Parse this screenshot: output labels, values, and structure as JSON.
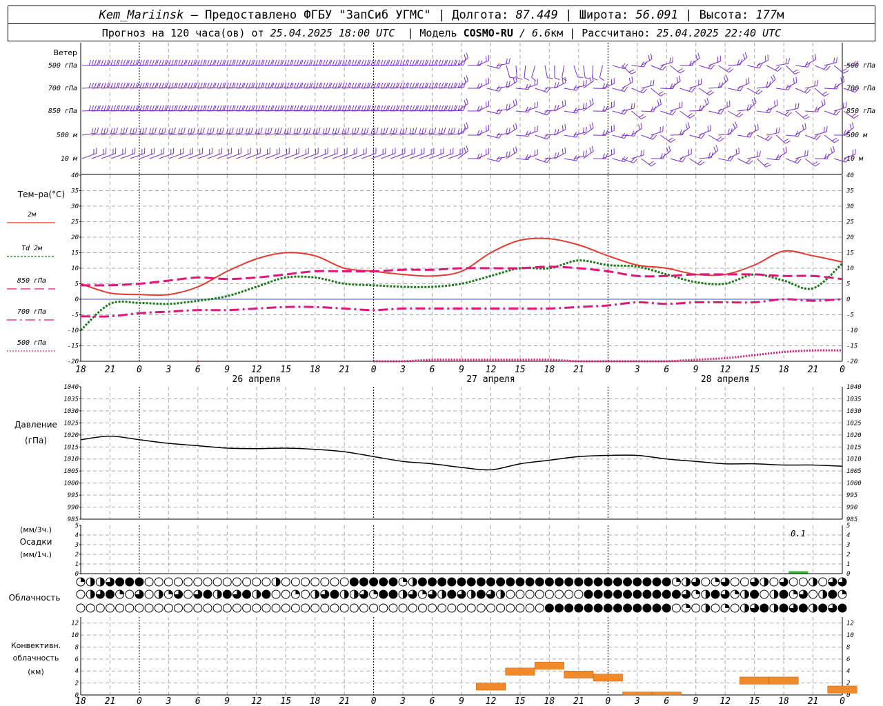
{
  "header": {
    "station": "Kem_Mariinsk",
    "sep": "–",
    "provider": "Предоставлено ФГБУ \"ЗапСиб УГМС\"",
    "lon_label": "Долгота:",
    "lon": "87.449",
    "lat_label": "Широта:",
    "lat": "56.091",
    "alt_label": "Высота:",
    "alt": "177",
    "alt_unit": "м",
    "forecast_text": "Прогноз на 120 часа(ов) от",
    "forecast_time": "25.04.2025 18:00 UTC",
    "model_label": "Модель",
    "model": "COSMO-RU",
    "resolution": "/ 6.6",
    "res_unit": "км",
    "computed_label": "Рассчитано:",
    "computed_time": "25.04.2025 22:40 UTC"
  },
  "time_axis": {
    "hour_labels": [
      "18",
      "21",
      "0",
      "3",
      "6",
      "9",
      "12",
      "15",
      "18",
      "21",
      "0",
      "3",
      "6",
      "9",
      "12",
      "15",
      "18",
      "21",
      "0",
      "3",
      "6",
      "9",
      "12",
      "15",
      "18",
      "21",
      "0"
    ],
    "day_labels": [
      "26 апреля",
      "27 апреля",
      "28 апреля"
    ]
  },
  "wind": {
    "title": "Ветер",
    "levels": [
      "500 гПа",
      "700 гПа",
      "850 гПа",
      "500 м",
      "10 м"
    ]
  },
  "temperature": {
    "title": "Тем–ра(°С)",
    "legend": [
      {
        "label": "2м",
        "color": "#e8392f",
        "style": "solid"
      },
      {
        "label": "Td  2м",
        "color": "#1a7a1a",
        "style": "dotted"
      },
      {
        "label": "850 гПа",
        "color": "#e0177a",
        "style": "dashed"
      },
      {
        "label": "700 гПа",
        "color": "#e0177a",
        "style": "dashdot"
      },
      {
        "label": "500 гПа",
        "color": "#e0177a",
        "style": "densedot"
      }
    ],
    "ticks": [
      "40",
      "35",
      "30",
      "25",
      "20",
      "15",
      "10",
      "5",
      "0",
      "-5",
      "-10",
      "-15",
      "-20"
    ]
  },
  "pressure": {
    "title": "Давление",
    "unit": "(гПа)",
    "ticks": [
      "1040",
      "1035",
      "1030",
      "1025",
      "1020",
      "1015",
      "1010",
      "1005",
      "1000",
      "995",
      "990",
      "985"
    ]
  },
  "precip": {
    "unit3": "(мм/3ч.)",
    "title": "Осадки",
    "unit1": "(мм/1ч.)",
    "ticks": [
      "5",
      "4",
      "3",
      "2",
      "1",
      "0"
    ],
    "annotation": "0.1"
  },
  "cloud": {
    "title": "Облачность"
  },
  "convective": {
    "title1": "Конвективн.",
    "title2": "облачность",
    "unit": "(км)",
    "ticks": [
      "12",
      "10",
      "8",
      "6",
      "4",
      "2",
      "0"
    ]
  },
  "chart_data": {
    "type": "meteogram",
    "x_hours_from_start": [
      0,
      3,
      6,
      9,
      12,
      15,
      18,
      21,
      24,
      27,
      30,
      33,
      36,
      39,
      42,
      45,
      48,
      51,
      54,
      57,
      60,
      63,
      66,
      69,
      72,
      75,
      78
    ],
    "series": [
      {
        "name": "2м",
        "values": [
          5,
          2,
          1.5,
          1.5,
          4,
          9,
          13,
          15,
          14,
          10,
          9,
          8,
          7.5,
          9,
          15,
          19,
          19.5,
          17.5,
          14,
          11,
          10,
          8,
          8,
          11,
          15.5,
          14,
          12
        ]
      },
      {
        "name": "Td  2м",
        "values": [
          -10,
          -1.5,
          -1.2,
          -1.5,
          -0.5,
          1,
          4,
          7,
          7,
          5,
          4.5,
          4,
          4,
          5,
          7.5,
          10,
          10,
          12.5,
          11,
          10.5,
          8,
          5.5,
          5,
          8,
          6,
          3.5,
          11.5
        ]
      },
      {
        "name": "850 гПа",
        "values": [
          4.5,
          4.5,
          5,
          6,
          7,
          6.5,
          7,
          8,
          9,
          9,
          9,
          9.5,
          9.5,
          10,
          10,
          10,
          10.5,
          10,
          9,
          7.5,
          7.5,
          8,
          8,
          8,
          7.5,
          7.5,
          6.5
        ]
      },
      {
        "name": "700 гПа",
        "values": [
          -5.5,
          -5.5,
          -4.5,
          -4,
          -3.5,
          -3.5,
          -3,
          -2.5,
          -2.5,
          -3,
          -3.5,
          -3,
          -3,
          -3,
          -3,
          -3,
          -3,
          -2.5,
          -2,
          -1,
          -1.5,
          -1,
          -1,
          -1,
          0,
          -0.5,
          0
        ]
      },
      {
        "name": "500 гПа",
        "values": [
          null,
          null,
          null,
          null,
          -20,
          null,
          null,
          null,
          null,
          null,
          -20,
          -20,
          -19.5,
          -19.5,
          -19.5,
          -19.5,
          -19.5,
          -20,
          -20,
          -20,
          -20,
          -19.5,
          -19,
          -18,
          -17,
          -16.5,
          -16.5
        ]
      },
      {
        "name": "Давление",
        "values": [
          1018,
          1019.5,
          1018,
          1016.5,
          1015.5,
          1014.5,
          1014.3,
          1014.5,
          1014,
          1013,
          1011,
          1009,
          1008,
          1006.5,
          1005.5,
          1008,
          1009.5,
          1011,
          1011.5,
          1011.5,
          1010,
          1009,
          1008,
          1008,
          1007.5,
          1007.5,
          1007
        ]
      },
      {
        "name": "Конвективн. облачность",
        "values": [
          0,
          0,
          0,
          0,
          0,
          0,
          0,
          0,
          0,
          0,
          0,
          0,
          0,
          0,
          2,
          4.5,
          5.5,
          4,
          3.5,
          0.5,
          0.5,
          0,
          0,
          3,
          3,
          0,
          1.5
        ]
      }
    ],
    "ylim_temp": [
      -20,
      40
    ],
    "ylim_pressure": [
      985,
      1040
    ],
    "ylim_precip": [
      0,
      5
    ],
    "ylim_convective": [
      0,
      13
    ],
    "grid": true
  }
}
